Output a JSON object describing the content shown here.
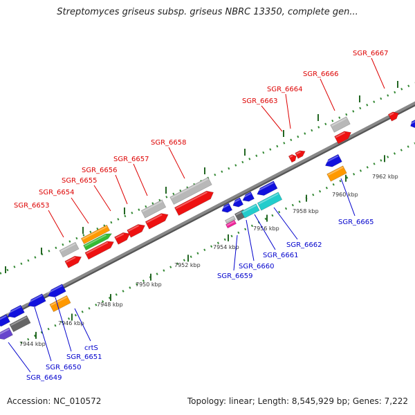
{
  "title": "Streptomyces griseus subsp. griseus NBRC 13350, complete gen...",
  "footer": {
    "accession": "Accession: NC_010572",
    "topology": "Topology: linear; Length: 8,545,929 bp; Genes: 7,222"
  },
  "colors": {
    "red": "#ee1111",
    "blue": "#1111dd",
    "gray": "#b8b8b8",
    "darkgray": "#666666",
    "orange": "#ff9900",
    "green": "#33bb33",
    "cyan": "#22cccc",
    "magenta": "#ee2299",
    "purple": "#6644cc",
    "dots": "#338833",
    "ticks": "#226622",
    "backbone": "#888888"
  },
  "scale": {
    "kbp_labels": [
      "7944 kbp",
      "7946 kbp",
      "7948 kbp",
      "7950 kbp",
      "7952 kbp",
      "7954 kbp",
      "7956 kbp",
      "7958 kbp",
      "7960 kbp",
      "7962 kbp"
    ]
  },
  "gene_labels": {
    "top": [
      "SGR_6653",
      "SGR_6654",
      "SGR_6655",
      "SGR_6656",
      "SGR_6657",
      "SGR_6658",
      "SGR_6663",
      "SGR_6664",
      "SGR_6666",
      "SGR_6667"
    ],
    "bottom": [
      "crtS",
      "SGR_6651",
      "SGR_6650",
      "SGR_6649",
      "SGR_6659",
      "SGR_6660",
      "SGR_6661",
      "SGR_6662",
      "SGR_6665"
    ]
  }
}
